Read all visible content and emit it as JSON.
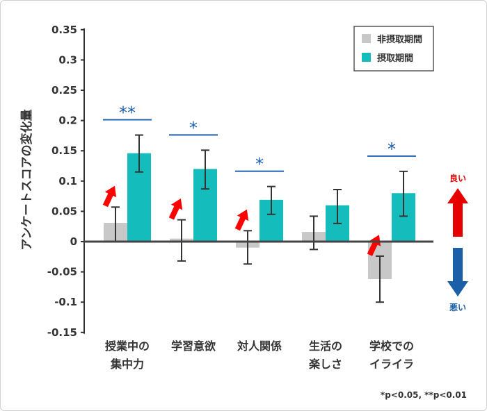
{
  "chart_data": {
    "type": "bar",
    "ylabel": "アンケートスコアの変化量",
    "ylim": [
      -0.15,
      0.35
    ],
    "yticks": [
      "0.35",
      "0.3",
      "0.25",
      "0.2",
      "0.15",
      "0.1",
      "0.05",
      "0",
      "-0.05",
      "-0.1",
      "-0.15"
    ],
    "categories": [
      [
        "授業中の",
        "集中力"
      ],
      [
        "学習意欲"
      ],
      [
        "対人関係"
      ],
      [
        "生活の",
        "楽しさ"
      ],
      [
        "学校での",
        "イライラ"
      ]
    ],
    "series": [
      {
        "name": "非摂取期間",
        "color": "#c8c8c8",
        "values": [
          0.031,
          0.005,
          -0.01,
          0.016,
          -0.062
        ],
        "err_high": [
          0.057,
          0.036,
          0.018,
          0.042,
          -0.024
        ],
        "err_low": [
          0.0,
          -0.032,
          -0.037,
          -0.013,
          -0.1
        ]
      },
      {
        "name": "摂取期間",
        "color": "#14bdbb",
        "values": [
          0.146,
          0.12,
          0.069,
          0.06,
          0.08
        ],
        "err_high": [
          0.176,
          0.151,
          0.091,
          0.086,
          0.116
        ],
        "err_low": [
          0.115,
          0.087,
          0.045,
          0.03,
          0.042
        ]
      }
    ],
    "significance": [
      "**",
      "*",
      "*",
      "",
      "*"
    ],
    "up_arrows": [
      true,
      true,
      true,
      false,
      true
    ],
    "legend": "top-right",
    "side_labels": {
      "good": "良い",
      "bad": "悪い",
      "good_color": "#e60000",
      "bad_color": "#1a5fa8"
    },
    "footnote": "*p<0.05, **p<0.01"
  }
}
